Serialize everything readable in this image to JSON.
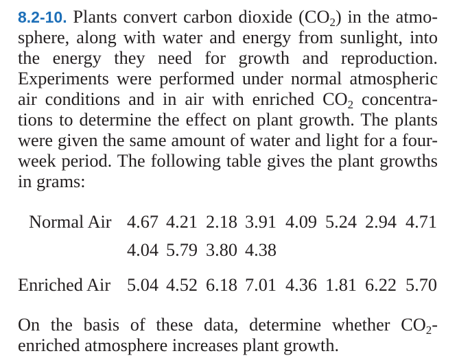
{
  "problem": {
    "number": "8.2-10.",
    "text_1": "Plants convert carbon dioxide (CO",
    "sub_1": "2",
    "text_2": ") in the atmo-sphere, along with water and energy from sunlight, into the energy they need for growth and reproduction. Experiments were performed under normal atmospheric air conditions and in air with enriched CO",
    "sub_2": "2",
    "text_3": " concentra-tions to determine the effect on plant growth. The plants were given the same amount of water and light for a four-week period. The following table gives the plant growths in grams:"
  },
  "table": {
    "normal_label": "Normal Air",
    "normal_row1": [
      "4.67",
      "4.21",
      "2.18",
      "3.91",
      "4.09",
      "5.24",
      "2.94",
      "4.71"
    ],
    "normal_row2": [
      "4.04",
      "5.79",
      "3.80",
      "4.38"
    ],
    "enriched_label": "Enriched Air",
    "enriched_row": [
      "5.04",
      "4.52",
      "6.18",
      "7.01",
      "4.36",
      "1.81",
      "6.22",
      "5.70"
    ]
  },
  "closing": {
    "text_1": "On the basis of these data, determine whether CO",
    "sub": "2",
    "text_2": "-enriched atmosphere increases plant growth."
  }
}
